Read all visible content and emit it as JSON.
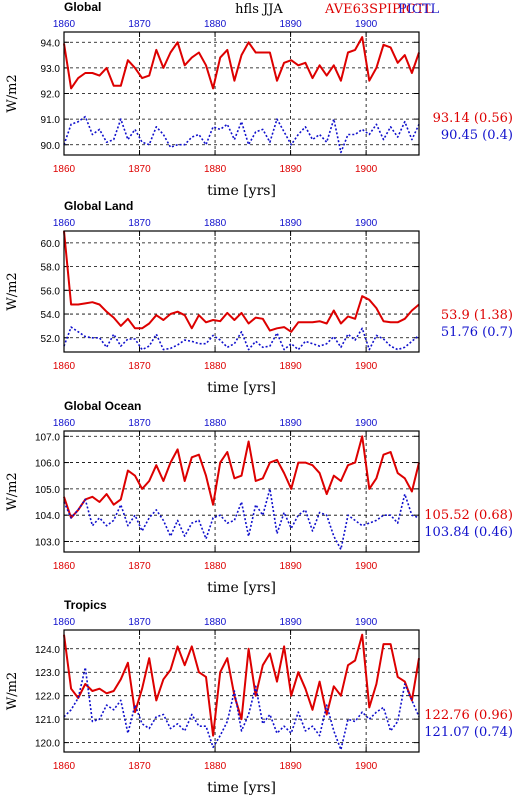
{
  "header": {
    "center_title": "hfls  JJA",
    "case_label": "AVE63SPIPICTL",
    "case_overprint": "PICTL",
    "case_color": "#dd0000",
    "ctrl_color": "#2222cc"
  },
  "colors": {
    "red": "#dd0000",
    "blue": "#1010cc",
    "grid": "#000000"
  },
  "chart_data": [
    {
      "type": "line",
      "title": "Global",
      "xlabel": "time [yrs]",
      "ylabel": "W/m2",
      "xlim": [
        1860,
        1907
      ],
      "ylim": [
        89.6,
        94.4
      ],
      "xticks": [
        1860,
        1870,
        1880,
        1890,
        1900
      ],
      "yticks": [
        90.0,
        91.0,
        92.0,
        93.0,
        94.0
      ],
      "ytick_labels": [
        "90.0",
        "91.0",
        "92.0",
        "93.0",
        "94.0"
      ],
      "series": [
        {
          "name": "AVE63SPIPI",
          "color": "red",
          "dash": "solid",
          "mean_label": "93.14 (0.56)",
          "values": [
            93.95,
            92.2,
            92.6,
            92.8,
            92.8,
            92.7,
            93.0,
            92.3,
            92.3,
            93.3,
            93.0,
            92.6,
            92.7,
            93.7,
            93.0,
            93.6,
            94.0,
            93.1,
            93.4,
            93.6,
            93.1,
            92.2,
            93.4,
            93.7,
            92.5,
            93.5,
            94.0,
            93.6,
            93.6,
            93.6,
            92.5,
            93.2,
            93.3,
            93.1,
            93.2,
            92.6,
            93.1,
            92.7,
            93.1,
            92.5,
            93.6,
            93.7,
            94.2,
            92.5,
            93.0,
            93.9,
            93.8,
            93.2,
            93.5,
            92.8,
            93.6
          ]
        },
        {
          "name": "PICTL",
          "color": "blue",
          "dash": "dot",
          "mean_label": "90.45 (0.4)",
          "values": [
            90.0,
            90.8,
            90.9,
            91.1,
            90.4,
            90.6,
            90.1,
            90.2,
            91.0,
            90.2,
            90.6,
            90.1,
            90.0,
            90.7,
            90.4,
            89.9,
            90.0,
            90.0,
            90.3,
            90.4,
            90.0,
            90.7,
            90.6,
            90.8,
            90.2,
            90.9,
            90.0,
            90.5,
            90.6,
            90.1,
            91.0,
            90.5,
            90.0,
            90.4,
            90.7,
            90.2,
            90.4,
            90.1,
            91.0,
            89.7,
            90.4,
            90.4,
            90.6,
            90.4,
            90.8,
            90.2,
            90.7,
            90.3,
            90.9,
            90.2,
            90.8
          ]
        }
      ]
    },
    {
      "type": "line",
      "title": "Global Land",
      "xlabel": "time [yrs]",
      "ylabel": "W/m2",
      "xlim": [
        1860,
        1907
      ],
      "ylim": [
        50.8,
        61.0
      ],
      "xticks": [
        1860,
        1870,
        1880,
        1890,
        1900
      ],
      "yticks": [
        52.0,
        54.0,
        56.0,
        58.0,
        60.0
      ],
      "ytick_labels": [
        "52.0",
        "54.0",
        "56.0",
        "58.0",
        "60.0"
      ],
      "series": [
        {
          "name": "AVE63SPIPI",
          "color": "red",
          "dash": "solid",
          "mean_label": "53.9 (1.38)",
          "values": [
            61.0,
            54.8,
            54.8,
            54.9,
            55.0,
            54.8,
            54.2,
            53.7,
            53.0,
            53.6,
            52.8,
            52.8,
            53.2,
            53.9,
            53.5,
            54.0,
            54.2,
            53.9,
            52.8,
            53.9,
            53.3,
            53.5,
            53.4,
            54.1,
            53.5,
            54.1,
            53.2,
            53.7,
            53.6,
            52.6,
            52.8,
            52.9,
            52.5,
            53.3,
            53.3,
            53.3,
            53.4,
            53.2,
            54.3,
            53.2,
            53.8,
            53.6,
            55.5,
            55.2,
            54.5,
            53.4,
            53.3,
            53.3,
            53.6,
            54.3,
            54.8
          ]
        },
        {
          "name": "PICTL",
          "color": "blue",
          "dash": "dot",
          "mean_label": "51.76 (0.7)",
          "values": [
            51.3,
            52.9,
            52.5,
            52.1,
            52.0,
            52.0,
            51.2,
            52.3,
            51.3,
            51.9,
            51.9,
            51.0,
            51.3,
            52.3,
            51.0,
            51.1,
            51.4,
            51.8,
            51.7,
            51.5,
            51.5,
            52.2,
            51.8,
            51.2,
            51.5,
            52.5,
            51.0,
            51.7,
            51.2,
            51.3,
            52.4,
            51.0,
            51.5,
            51.0,
            51.7,
            51.5,
            51.3,
            51.5,
            52.1,
            51.2,
            52.3,
            51.8,
            52.8,
            51.0,
            52.2,
            51.9,
            51.3,
            51.0,
            51.2,
            51.7,
            52.2
          ]
        }
      ]
    },
    {
      "type": "line",
      "title": "Global Ocean",
      "xlabel": "time [yrs]",
      "ylabel": "W/m2",
      "xlim": [
        1860,
        1907
      ],
      "ylim": [
        102.6,
        107.2
      ],
      "xticks": [
        1860,
        1870,
        1880,
        1890,
        1900
      ],
      "yticks": [
        103.0,
        104.0,
        105.0,
        106.0,
        107.0
      ],
      "ytick_labels": [
        "103.0",
        "104.0",
        "105.0",
        "106.0",
        "107.0"
      ],
      "series": [
        {
          "name": "AVE63SPIPI",
          "color": "red",
          "dash": "solid",
          "mean_label": "105.52 (0.68)",
          "values": [
            104.7,
            103.9,
            104.2,
            104.6,
            104.7,
            104.5,
            104.8,
            104.4,
            104.6,
            105.7,
            105.5,
            105.0,
            105.3,
            105.9,
            105.3,
            106.0,
            106.5,
            105.3,
            106.2,
            106.3,
            105.5,
            104.4,
            106.0,
            106.4,
            105.4,
            105.5,
            106.8,
            105.3,
            105.4,
            106.0,
            106.1,
            105.6,
            105.0,
            106.0,
            106.0,
            105.9,
            105.6,
            104.8,
            105.5,
            105.3,
            105.9,
            106.0,
            107.0,
            105.0,
            105.4,
            106.3,
            106.4,
            105.6,
            105.4,
            104.9,
            106.0
          ]
        },
        {
          "name": "PICTL",
          "color": "blue",
          "dash": "dot",
          "mean_label": "103.84 (0.46)",
          "values": [
            104.5,
            103.9,
            104.2,
            104.6,
            103.6,
            103.9,
            103.6,
            103.8,
            104.4,
            103.6,
            104.0,
            103.4,
            103.9,
            104.2,
            103.8,
            103.2,
            103.8,
            103.2,
            103.7,
            103.8,
            103.1,
            103.9,
            104.0,
            103.7,
            103.8,
            104.5,
            103.2,
            104.4,
            104.0,
            105.0,
            103.3,
            104.1,
            103.5,
            104.0,
            104.2,
            103.4,
            104.1,
            104.0,
            103.2,
            102.7,
            104.0,
            103.8,
            103.6,
            103.7,
            103.8,
            104.0,
            104.0,
            103.7,
            104.8,
            104.0,
            103.9
          ]
        }
      ]
    },
    {
      "type": "line",
      "title": "Tropics",
      "xlabel": "time [yrs]",
      "ylabel": "W/m2",
      "xlim": [
        1860,
        1907
      ],
      "ylim": [
        119.6,
        124.8
      ],
      "xticks": [
        1860,
        1870,
        1880,
        1890,
        1900
      ],
      "yticks": [
        120.0,
        121.0,
        122.0,
        123.0,
        124.0
      ],
      "ytick_labels": [
        "120.0",
        "121.0",
        "122.0",
        "123.0",
        "124.0"
      ],
      "series": [
        {
          "name": "AVE63SPIPI",
          "color": "red",
          "dash": "solid",
          "mean_label": "122.76 (0.96)",
          "values": [
            124.6,
            122.3,
            121.9,
            122.5,
            122.2,
            122.3,
            122.1,
            122.2,
            122.7,
            123.4,
            121.3,
            122.3,
            123.6,
            121.8,
            122.7,
            123.1,
            124.1,
            123.3,
            124.1,
            123.0,
            122.8,
            120.3,
            123.0,
            123.6,
            122.0,
            121.0,
            124.0,
            122.0,
            123.3,
            123.8,
            122.6,
            124.1,
            122.0,
            123.0,
            122.3,
            121.4,
            122.6,
            121.2,
            122.4,
            122.0,
            123.3,
            123.5,
            124.6,
            121.5,
            122.5,
            124.2,
            124.2,
            122.8,
            122.6,
            121.8,
            123.6
          ]
        },
        {
          "name": "PICTL",
          "color": "blue",
          "dash": "dot",
          "mean_label": "121.07 (0.74)",
          "values": [
            121.1,
            121.4,
            121.9,
            123.2,
            120.9,
            121.0,
            121.6,
            121.4,
            121.8,
            120.4,
            121.6,
            120.8,
            120.6,
            121.1,
            121.2,
            120.6,
            120.8,
            120.5,
            121.2,
            120.7,
            120.7,
            119.8,
            120.3,
            120.9,
            122.2,
            120.5,
            121.2,
            122.4,
            120.8,
            121.2,
            120.4,
            120.7,
            120.4,
            121.3,
            120.5,
            120.7,
            120.3,
            121.6,
            120.5,
            119.7,
            121.0,
            120.9,
            121.3,
            121.0,
            121.3,
            121.5,
            120.5,
            120.9,
            122.5,
            121.8,
            121.1
          ]
        }
      ]
    }
  ]
}
